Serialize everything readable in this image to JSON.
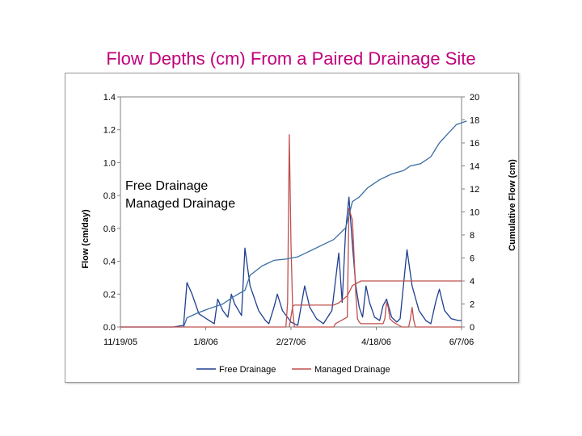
{
  "title": "Flow Depths (cm) From a Paired Drainage Site",
  "overlay_labels": [
    "Free Drainage",
    "Managed Drainage"
  ],
  "colors": {
    "title": "#c0007a",
    "free": "#1f3f8f",
    "managed": "#c0504d",
    "cumulative": "#3a6ea5"
  },
  "chart_data": {
    "type": "line",
    "x_tick_labels": [
      "11/19/05",
      "1/8/06",
      "2/27/06",
      "4/18/06",
      "6/7/06"
    ],
    "x_ticks": [
      "2005-11-19",
      "2006-01-08",
      "2006-02-27",
      "2006-04-18",
      "2006-06-07"
    ],
    "ylabel": "Flow (cm/day)",
    "ylim": [
      0,
      1.4
    ],
    "y_ticks": [
      "0.0",
      "0.2",
      "0.4",
      "0.6",
      "0.8",
      "1.0",
      "1.2",
      "1.4"
    ],
    "y2label": "Cumulative Flow (cm)",
    "y2lim": [
      0,
      20
    ],
    "y2_ticks": [
      "0",
      "2",
      "4",
      "6",
      "8",
      "10",
      "12",
      "14",
      "16",
      "18",
      "20"
    ],
    "legend": [
      "Free Drainage",
      "Managed Drainage"
    ],
    "legend_position": "bottom",
    "series": [
      {
        "name": "Free Drainage",
        "axis": "left",
        "points": [
          [
            "2005-11-19",
            0
          ],
          [
            "2005-12-20",
            0
          ],
          [
            "2005-12-26",
            0.01
          ],
          [
            "2005-12-28",
            0.27
          ],
          [
            "2005-12-31",
            0.2
          ],
          [
            "2006-01-04",
            0.08
          ],
          [
            "2006-01-10",
            0.04
          ],
          [
            "2006-01-13",
            0.02
          ],
          [
            "2006-01-15",
            0.17
          ],
          [
            "2006-01-18",
            0.1
          ],
          [
            "2006-01-21",
            0.06
          ],
          [
            "2006-01-23",
            0.2
          ],
          [
            "2006-01-25",
            0.14
          ],
          [
            "2006-01-29",
            0.07
          ],
          [
            "2006-01-31",
            0.48
          ],
          [
            "2006-02-03",
            0.25
          ],
          [
            "2006-02-08",
            0.1
          ],
          [
            "2006-02-12",
            0.04
          ],
          [
            "2006-02-14",
            0.02
          ],
          [
            "2006-02-17",
            0.12
          ],
          [
            "2006-02-19",
            0.2
          ],
          [
            "2006-02-22",
            0.1
          ],
          [
            "2006-02-27",
            0.03
          ],
          [
            "2006-03-03",
            0.01
          ],
          [
            "2006-03-07",
            0.25
          ],
          [
            "2006-03-10",
            0.12
          ],
          [
            "2006-03-14",
            0.05
          ],
          [
            "2006-03-18",
            0.02
          ],
          [
            "2006-03-23",
            0.1
          ],
          [
            "2006-03-27",
            0.45
          ],
          [
            "2006-03-29",
            0.15
          ],
          [
            "2006-03-31",
            0.58
          ],
          [
            "2006-04-02",
            0.79
          ],
          [
            "2006-04-04",
            0.5
          ],
          [
            "2006-04-06",
            0.25
          ],
          [
            "2006-04-08",
            0.12
          ],
          [
            "2006-04-10",
            0.06
          ],
          [
            "2006-04-12",
            0.25
          ],
          [
            "2006-04-14",
            0.15
          ],
          [
            "2006-04-17",
            0.06
          ],
          [
            "2006-04-20",
            0.04
          ],
          [
            "2006-04-22",
            0.13
          ],
          [
            "2006-04-24",
            0.17
          ],
          [
            "2006-04-27",
            0.06
          ],
          [
            "2006-04-30",
            0.03
          ],
          [
            "2006-05-02",
            0.05
          ],
          [
            "2006-05-06",
            0.47
          ],
          [
            "2006-05-09",
            0.25
          ],
          [
            "2006-05-13",
            0.1
          ],
          [
            "2006-05-17",
            0.04
          ],
          [
            "2006-05-20",
            0.02
          ],
          [
            "2006-05-23",
            0.16
          ],
          [
            "2006-05-25",
            0.23
          ],
          [
            "2006-05-28",
            0.1
          ],
          [
            "2006-06-01",
            0.05
          ],
          [
            "2006-06-05",
            0.04
          ],
          [
            "2006-06-07",
            0.04
          ]
        ]
      },
      {
        "name": "Managed Drainage",
        "axis": "left",
        "points": [
          [
            "2005-11-19",
            0
          ],
          [
            "2006-02-24",
            0
          ],
          [
            "2006-02-25",
            0.15
          ],
          [
            "2006-02-26",
            1.17
          ],
          [
            "2006-02-27",
            0.5
          ],
          [
            "2006-02-28",
            0.1
          ],
          [
            "2006-03-01",
            0
          ],
          [
            "2006-03-24",
            0
          ],
          [
            "2006-03-25",
            0.02
          ],
          [
            "2006-04-01",
            0.06
          ],
          [
            "2006-04-02",
            0.72
          ],
          [
            "2006-04-04",
            0.65
          ],
          [
            "2006-04-06",
            0.2
          ],
          [
            "2006-04-07",
            0.05
          ],
          [
            "2006-04-08",
            0.03
          ],
          [
            "2006-04-09",
            0.02
          ],
          [
            "2006-04-22",
            0.02
          ],
          [
            "2006-04-23",
            0.05
          ],
          [
            "2006-04-24",
            0.15
          ],
          [
            "2006-04-25",
            0.12
          ],
          [
            "2006-04-26",
            0.05
          ],
          [
            "2006-04-28",
            0.03
          ],
          [
            "2006-05-03",
            0
          ],
          [
            "2006-05-07",
            0
          ],
          [
            "2006-05-08",
            0.05
          ],
          [
            "2006-05-09",
            0.12
          ],
          [
            "2006-05-10",
            0.04
          ],
          [
            "2006-05-11",
            0
          ],
          [
            "2006-06-07",
            0
          ]
        ]
      },
      {
        "name": "Free Drainage (cumulative)",
        "axis": "right",
        "points": [
          [
            "2005-12-26",
            0
          ],
          [
            "2005-12-28",
            0.8
          ],
          [
            "2006-01-03",
            1.2
          ],
          [
            "2006-01-10",
            1.6
          ],
          [
            "2006-01-18",
            2.0
          ],
          [
            "2006-01-24",
            2.6
          ],
          [
            "2006-01-31",
            3.2
          ],
          [
            "2006-02-03",
            4.5
          ],
          [
            "2006-02-10",
            5.3
          ],
          [
            "2006-02-17",
            5.8
          ],
          [
            "2006-02-24",
            5.9
          ],
          [
            "2006-03-03",
            6.1
          ],
          [
            "2006-03-10",
            6.6
          ],
          [
            "2006-03-17",
            7.1
          ],
          [
            "2006-03-24",
            7.6
          ],
          [
            "2006-03-31",
            8.6
          ],
          [
            "2006-04-02",
            9.7
          ],
          [
            "2006-04-04",
            10.9
          ],
          [
            "2006-04-08",
            11.3
          ],
          [
            "2006-04-13",
            12.1
          ],
          [
            "2006-04-20",
            12.8
          ],
          [
            "2006-04-27",
            13.3
          ],
          [
            "2006-05-04",
            13.6
          ],
          [
            "2006-05-08",
            14.0
          ],
          [
            "2006-05-14",
            14.2
          ],
          [
            "2006-05-20",
            14.8
          ],
          [
            "2006-05-25",
            16.0
          ],
          [
            "2006-05-30",
            16.8
          ],
          [
            "2006-06-04",
            17.6
          ],
          [
            "2006-06-10",
            17.9
          ]
        ]
      },
      {
        "name": "Managed Drainage (cumulative)",
        "axis": "right",
        "points": [
          [
            "2006-02-26",
            0
          ],
          [
            "2006-02-28",
            1.8
          ],
          [
            "2006-03-01",
            1.9
          ],
          [
            "2006-03-24",
            1.9
          ],
          [
            "2006-03-27",
            2.1
          ],
          [
            "2006-04-01",
            2.7
          ],
          [
            "2006-04-04",
            3.6
          ],
          [
            "2006-04-09",
            4.0
          ],
          [
            "2006-06-07",
            4.0
          ]
        ]
      }
    ]
  }
}
